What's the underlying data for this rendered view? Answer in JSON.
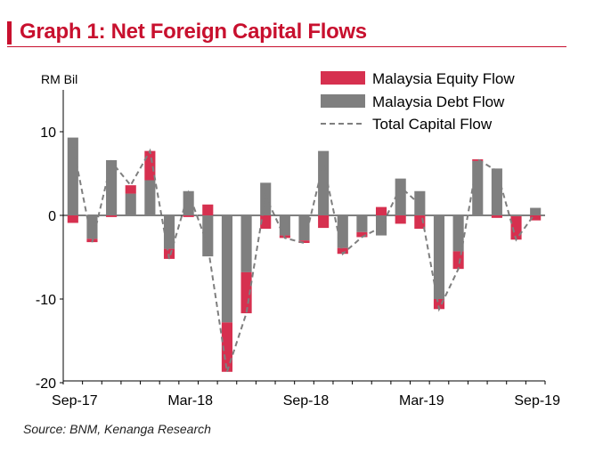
{
  "header": {
    "title": "Graph 1: Net Foreign Capital Flows"
  },
  "source": "Source:  BNM, Kenanga Research",
  "colors": {
    "accent": "#c8102e",
    "equity": "#d6304f",
    "debt": "#7f7f7f",
    "total": "#7f7f7f"
  },
  "chart_data": {
    "type": "bar",
    "subtype": "stacked bar with line overlay",
    "ylabel": "RM Bil",
    "ylim": [
      -20,
      15
    ],
    "yticks": [
      10,
      0,
      -10,
      -20
    ],
    "xtick_labels": [
      {
        "index": 0,
        "label": "Sep-17"
      },
      {
        "index": 6,
        "label": "Mar-18"
      },
      {
        "index": 12,
        "label": "Sep-18"
      },
      {
        "index": 18,
        "label": "Mar-19"
      },
      {
        "index": 24,
        "label": "Sep-19"
      }
    ],
    "legend_position": "top-right",
    "categories": [
      "Sep-17",
      "Oct-17",
      "Nov-17",
      "Dec-17",
      "Jan-18",
      "Feb-18",
      "Mar-18",
      "Apr-18",
      "May-18",
      "Jun-18",
      "Jul-18",
      "Aug-18",
      "Sep-18",
      "Oct-18",
      "Nov-18",
      "Dec-18",
      "Jan-19",
      "Feb-19",
      "Mar-19",
      "Apr-19",
      "May-19",
      "Jun-19",
      "Jul-19",
      "Aug-19",
      "Sep-19"
    ],
    "series": [
      {
        "name": "Malaysia Equity Flow",
        "values": [
          -0.9,
          -0.4,
          -0.2,
          1.0,
          3.5,
          -1.2,
          -0.2,
          1.3,
          -5.9,
          -4.9,
          -1.6,
          -0.3,
          -0.3,
          -1.5,
          -0.7,
          -0.6,
          1.0,
          -1.0,
          -1.6,
          -1.2,
          -2.1,
          0.2,
          -0.3,
          -2.8,
          -0.6
        ]
      },
      {
        "name": "Malaysia Debt Flow",
        "values": [
          9.3,
          -2.8,
          6.6,
          2.6,
          4.2,
          -4.0,
          2.9,
          -4.9,
          -12.8,
          -6.8,
          3.9,
          -2.4,
          -3.0,
          7.7,
          -3.9,
          -2.0,
          -2.4,
          4.4,
          2.9,
          -10.0,
          -4.3,
          6.5,
          5.6,
          -0.1,
          0.9
        ]
      },
      {
        "name": "Total Capital Flow",
        "values": [
          8.4,
          -3.2,
          6.4,
          3.6,
          7.7,
          -5.2,
          2.7,
          -3.6,
          -18.7,
          -11.7,
          2.3,
          -2.7,
          -3.3,
          6.2,
          -4.6,
          -2.6,
          -1.4,
          3.4,
          1.3,
          -11.2,
          -6.4,
          6.7,
          5.3,
          -2.9,
          0.3
        ]
      }
    ]
  }
}
